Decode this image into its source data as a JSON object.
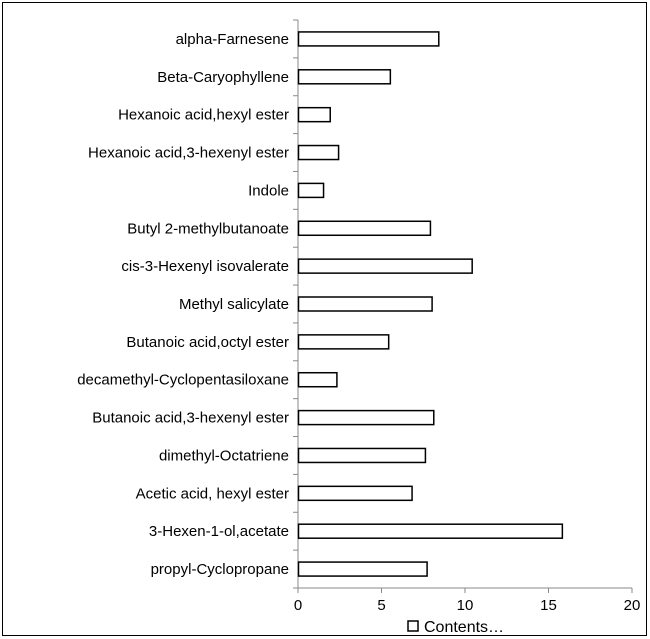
{
  "chart_data": {
    "type": "bar",
    "orientation": "horizontal",
    "categories": [
      "propyl-Cyclopropane",
      "3-Hexen-1-ol,acetate",
      "Acetic acid, hexyl ester",
      "dimethyl-Octatriene",
      "Butanoic acid,3-hexenyl ester",
      "decamethyl-Cyclopentasiloxane",
      "Butanoic acid,octyl ester",
      "Methyl salicylate",
      "cis-3-Hexenyl isovalerate",
      "Butyl 2-methylbutanoate",
      "Indole",
      "Hexanoic acid,3-hexenyl ester",
      "Hexanoic acid,hexyl ester",
      "Beta-Caryophyllene",
      "alpha-Farnesene"
    ],
    "series": [
      {
        "name": "Contents…",
        "values": [
          7.7,
          15.8,
          6.8,
          7.6,
          8.1,
          2.3,
          5.4,
          8.0,
          10.4,
          7.9,
          1.5,
          2.4,
          1.9,
          5.5,
          8.4
        ]
      }
    ],
    "xlim": [
      0,
      20
    ],
    "xticks": [
      0,
      5,
      10,
      15,
      20
    ],
    "legend_position": "bottom",
    "grid": false,
    "bar_fill": "#ffffff",
    "bar_stroke": "#000000"
  }
}
